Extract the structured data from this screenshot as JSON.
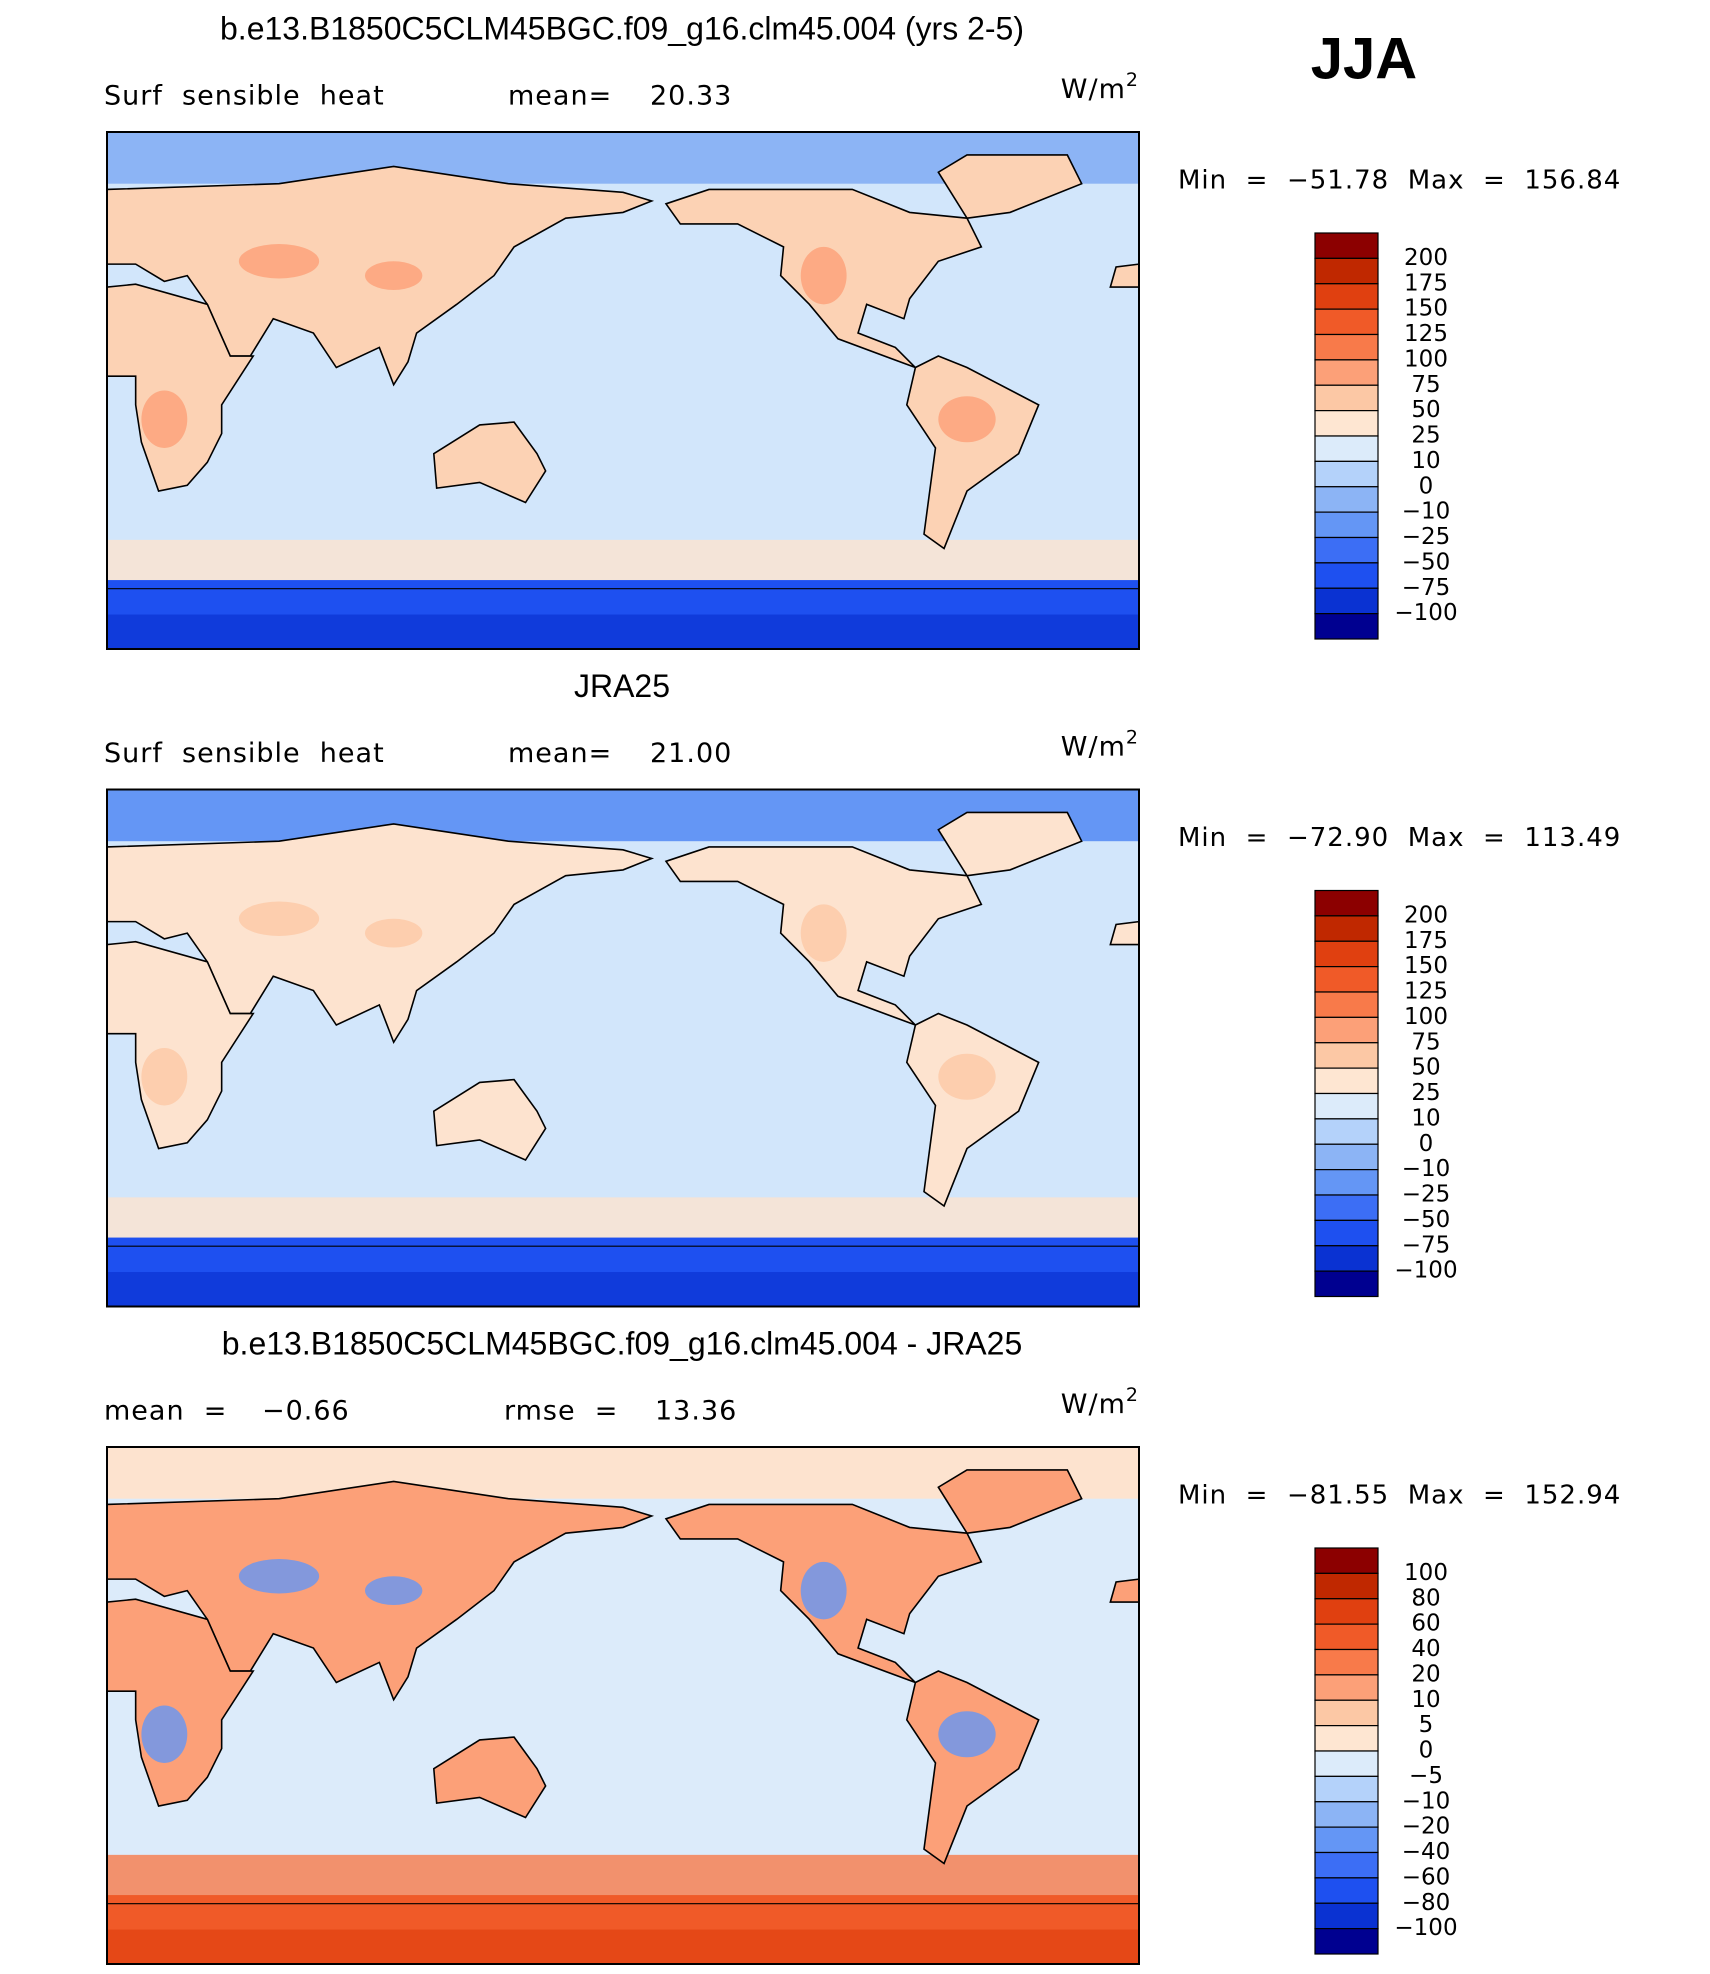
{
  "header": {
    "season": "JJA"
  },
  "panels": [
    {
      "title": "b.e13.B1850C5CLM45BGC.f09_g16.clm45.004 (yrs 2-5)",
      "stats": [
        "Surf  sensible  heat",
        "mean=",
        "20.33"
      ],
      "units": {
        "base": "W/m",
        "exponent": "2"
      },
      "min_max": "Min  =  −51.78  Max  =  156.84",
      "colorbar": {
        "levels": [
          "200",
          "175",
          "150",
          "125",
          "100",
          "75",
          "50",
          "25",
          "10",
          "0",
          "−10",
          "−25",
          "−50",
          "−75",
          "−100"
        ],
        "colors": [
          "#8c0000",
          "#c02800",
          "#e04010",
          "#f05a28",
          "#f87a4a",
          "#fca078",
          "#fcc8a5",
          "#fee6d2",
          "#dcebfa",
          "#b4d2fa",
          "#8cb4f5",
          "#6496f5",
          "#3c6ef5",
          "#1e50f0",
          "#0a32d2",
          "#000090"
        ]
      }
    },
    {
      "title": "JRA25",
      "stats": [
        "Surf  sensible  heat",
        "mean=",
        "21.00"
      ],
      "units": {
        "base": "W/m",
        "exponent": "2"
      },
      "min_max": "Min  =  −72.90  Max  =  113.49",
      "colorbar": {
        "levels": [
          "200",
          "175",
          "150",
          "125",
          "100",
          "75",
          "50",
          "25",
          "10",
          "0",
          "−10",
          "−25",
          "−50",
          "−75",
          "−100"
        ],
        "colors": [
          "#8c0000",
          "#c02800",
          "#e04010",
          "#f05a28",
          "#f87a4a",
          "#fca078",
          "#fcc8a5",
          "#fee6d2",
          "#dcebfa",
          "#b4d2fa",
          "#8cb4f5",
          "#6496f5",
          "#3c6ef5",
          "#1e50f0",
          "#0a32d2",
          "#000090"
        ]
      }
    },
    {
      "title": "b.e13.B1850C5CLM45BGC.f09_g16.clm45.004 - JRA25",
      "stats": [
        "mean  =",
        "−0.66",
        "rmse  =",
        "13.36"
      ],
      "units": {
        "base": "W/m",
        "exponent": "2"
      },
      "min_max": "Min  =  −81.55  Max  =  152.94",
      "colorbar": {
        "levels": [
          "100",
          "80",
          "60",
          "40",
          "20",
          "10",
          "5",
          "0",
          "−5",
          "−10",
          "−20",
          "−40",
          "−60",
          "−80",
          "−100"
        ],
        "colors": [
          "#8c0000",
          "#c02800",
          "#e04010",
          "#f05a28",
          "#f87a4a",
          "#fca078",
          "#fcc8a5",
          "#fee6d2",
          "#dcebfa",
          "#b4d2fa",
          "#8cb4f5",
          "#6496f5",
          "#3c6ef5",
          "#1e50f0",
          "#0a32d2",
          "#000090"
        ]
      }
    }
  ]
}
